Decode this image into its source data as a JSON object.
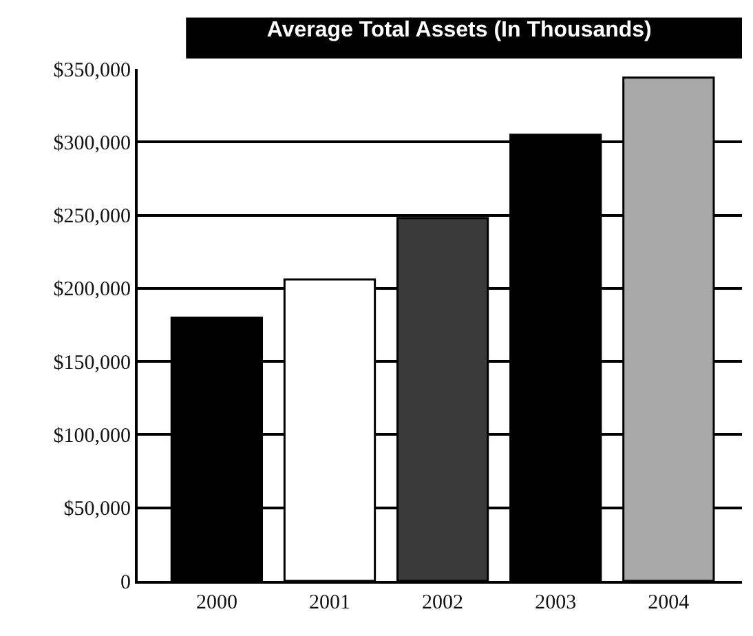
{
  "chart_data": {
    "type": "bar",
    "title": "Average Total Assets (In Thousands)",
    "categories": [
      "2000",
      "2001",
      "2002",
      "2003",
      "2004"
    ],
    "values": [
      180000,
      206000,
      248000,
      305000,
      344000
    ],
    "colors": [
      "#000000",
      "#ffffff",
      "#3a3a3a",
      "#000000",
      "#a8a8a8"
    ],
    "ylim": [
      0,
      350000
    ],
    "yticks": [
      {
        "value": 0,
        "label": "0"
      },
      {
        "value": 50000,
        "label": "$50,000"
      },
      {
        "value": 100000,
        "label": "$100,000"
      },
      {
        "value": 150000,
        "label": "$150,000"
      },
      {
        "value": 200000,
        "label": "$200,000"
      },
      {
        "value": 250000,
        "label": "$250,000"
      },
      {
        "value": 300000,
        "label": "$300,000"
      },
      {
        "value": 350000,
        "label": "$350,000"
      }
    ],
    "grid": "y"
  }
}
